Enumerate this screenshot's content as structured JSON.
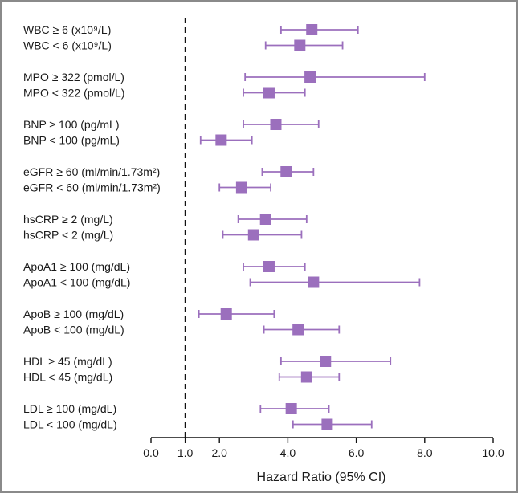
{
  "chart_data": {
    "type": "forest",
    "xlabel": "Hazard Ratio (95% CI)",
    "reference_line": 1.0,
    "xlim": [
      0.0,
      10.0
    ],
    "xticks": [
      "0.0",
      "1.0",
      "2.0",
      "4.0",
      "6.0",
      "8.0",
      "10.0"
    ],
    "xtick_values": [
      0,
      1,
      2,
      4,
      6,
      8,
      10
    ],
    "marker_color": "#9b6fbd",
    "frame_color": "#8a8a8a",
    "rows": [
      {
        "label": "WBC ≥ 6 (x10⁹/L)",
        "hr": 4.7,
        "lo": 3.8,
        "hi": 6.05
      },
      {
        "label": "WBC < 6  (x10⁹/L)",
        "hr": 4.35,
        "lo": 3.35,
        "hi": 5.6
      },
      {
        "label": "MPO ≥ 322 (pmol/L)",
        "hr": 4.65,
        "lo": 2.75,
        "hi": 8.0
      },
      {
        "label": "MPO < 322 (pmol/L)",
        "hr": 3.45,
        "lo": 2.7,
        "hi": 4.5
      },
      {
        "label": "BNP ≥ 100 (pg/mL)",
        "hr": 3.65,
        "lo": 2.7,
        "hi": 4.9
      },
      {
        "label": "BNP < 100 (pg/mL)",
        "hr": 2.05,
        "lo": 1.45,
        "hi": 2.95
      },
      {
        "label": "eGFR ≥ 60 (ml/min/1.73m²)",
        "hr": 3.95,
        "lo": 3.25,
        "hi": 4.75
      },
      {
        "label": "eGFR < 60 (ml/min/1.73m²)",
        "hr": 2.65,
        "lo": 2.0,
        "hi": 3.5
      },
      {
        "label": "hsCRP ≥ 2 (mg/L)",
        "hr": 3.35,
        "lo": 2.55,
        "hi": 4.55
      },
      {
        "label": "hsCRP < 2 (mg/L)",
        "hr": 3.0,
        "lo": 2.1,
        "hi": 4.4
      },
      {
        "label": "ApoA1 ≥ 100 (mg/dL)",
        "hr": 3.45,
        "lo": 2.7,
        "hi": 4.5
      },
      {
        "label": "ApoA1 < 100 (mg/dL)",
        "hr": 4.75,
        "lo": 2.9,
        "hi": 7.85
      },
      {
        "label": "ApoB ≥ 100 (mg/dL)",
        "hr": 2.2,
        "lo": 1.4,
        "hi": 3.6
      },
      {
        "label": "ApoB < 100 (mg/dL)",
        "hr": 4.3,
        "lo": 3.3,
        "hi": 5.5
      },
      {
        "label": "HDL ≥ 45 (mg/dL)",
        "hr": 5.1,
        "lo": 3.8,
        "hi": 7.0
      },
      {
        "label": "HDL < 45 (mg/dL)",
        "hr": 4.55,
        "lo": 3.75,
        "hi": 5.5
      },
      {
        "label": "LDL ≥ 100 (mg/dL)",
        "hr": 4.1,
        "lo": 3.2,
        "hi": 5.2
      },
      {
        "label": "LDL < 100 (mg/dL)",
        "hr": 5.15,
        "lo": 4.15,
        "hi": 6.45
      }
    ]
  }
}
